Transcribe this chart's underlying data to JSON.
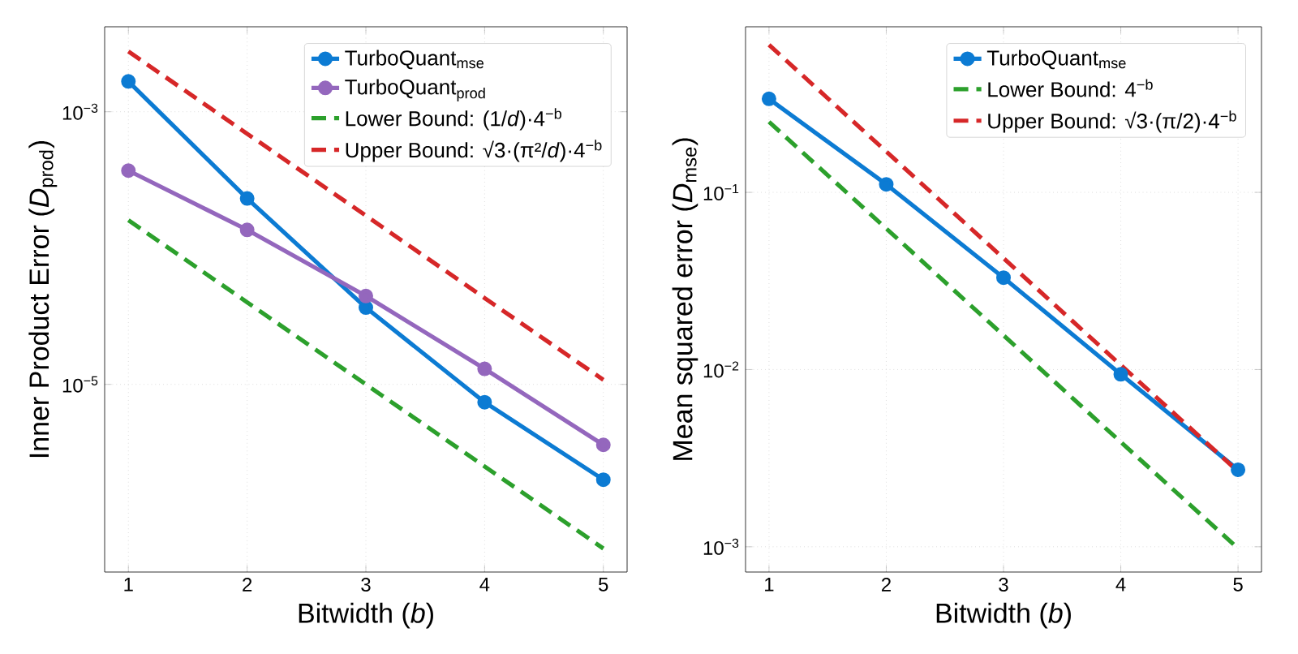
{
  "chart_data": [
    {
      "type": "line",
      "xlabel": "Bitwidth (*b*)",
      "ylabel": "Inner Product Error (*D*$_{prod}$)",
      "x": [
        1,
        2,
        3,
        4,
        5
      ],
      "xlim": [
        0.8,
        5.2
      ],
      "xticks": [
        1,
        2,
        3,
        4,
        5
      ],
      "ylim": [
        4.2e-07,
        0.0042
      ],
      "log": "y",
      "yticks": [
        {
          "value": 0.001,
          "label": "10$^{−3}$"
        },
        {
          "value": 1e-05,
          "label": "10$^{−5}$"
        }
      ],
      "grid": true,
      "legend": "top right",
      "series": [
        {
          "name": "TurboQuant$_{mse}$",
          "color": "#0c7bd3",
          "marker": "circle",
          "line_style": "solid",
          "values": [
            0.00167,
            0.000231,
            3.66e-05,
            7.4e-06,
            2e-06
          ]
        },
        {
          "name": "TurboQuant$_{prod}$",
          "color": "#9467bd",
          "marker": "circle",
          "line_style": "solid",
          "values": [
            0.00037,
            0.000136,
            4.45e-05,
            1.3e-05,
            3.6e-06
          ]
        },
        {
          "name": "Lower Bound: (1/*d*)·4$^{−b}$",
          "color": "#2ca02c",
          "marker": "none",
          "line_style": "dashed",
          "values": [
            0.00016,
            4e-05,
            1e-05,
            2.5e-06,
            6.25e-07
          ]
        },
        {
          "name": "Upper Bound: √3·(π²/*d*)·4$^{−b}$",
          "color": "#d62728",
          "marker": "none",
          "line_style": "dashed",
          "values": [
            0.00277,
            0.00069,
            0.000173,
            4.3e-05,
            1.08e-05
          ]
        }
      ]
    },
    {
      "type": "line",
      "xlabel": "Bitwidth (*b*)",
      "ylabel": "Mean squared error (*D*$_{mse}$)",
      "x": [
        1,
        2,
        3,
        4,
        5
      ],
      "xlim": [
        0.8,
        5.2
      ],
      "xticks": [
        1,
        2,
        3,
        4,
        5
      ],
      "ylim": [
        0.00072,
        0.86
      ],
      "log": "y",
      "yticks": [
        {
          "value": 0.1,
          "label": "10$^{−1}$"
        },
        {
          "value": 0.01,
          "label": "10$^{−2}$"
        },
        {
          "value": 0.001,
          "label": "10$^{−3}$"
        }
      ],
      "grid": true,
      "legend": "top right",
      "series": [
        {
          "name": "TurboQuant$_{mse}$",
          "color": "#0c7bd3",
          "marker": "circle",
          "line_style": "solid",
          "values": [
            0.337,
            0.111,
            0.033,
            0.0094,
            0.00272
          ]
        },
        {
          "name": "Lower Bound: 4$^{−b}$",
          "color": "#2ca02c",
          "marker": "none",
          "line_style": "dashed",
          "values": [
            0.25,
            0.0625,
            0.0156,
            0.0039,
            0.00098
          ]
        },
        {
          "name": "Upper Bound: √3·(π/2)·4$^{−b}$",
          "color": "#d62728",
          "marker": "none",
          "line_style": "dashed",
          "values": [
            0.68,
            0.17,
            0.0425,
            0.0106,
            0.00266
          ]
        }
      ]
    }
  ]
}
